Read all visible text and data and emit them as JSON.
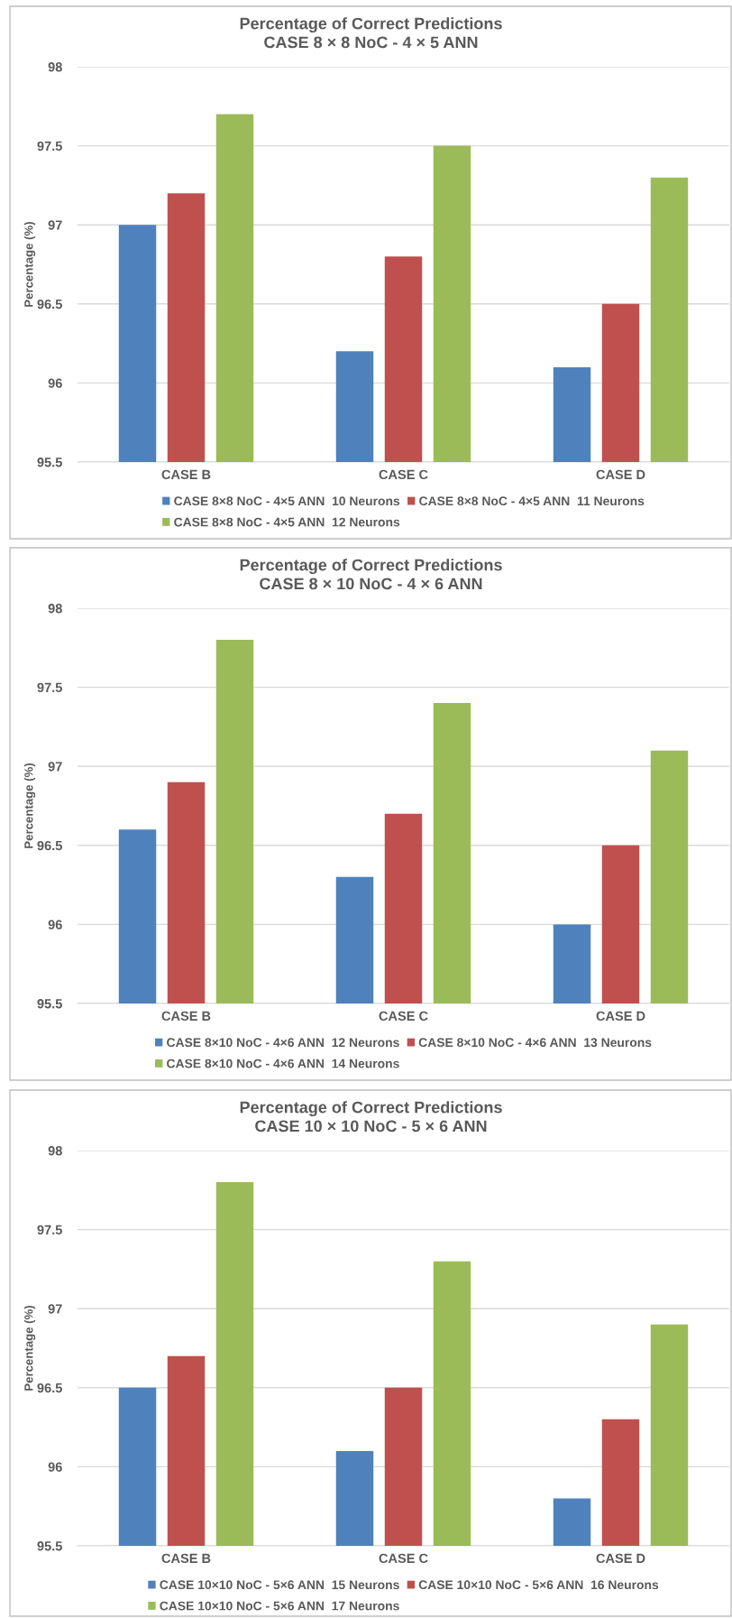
{
  "chart_data": [
    {
      "type": "bar",
      "title": "Percentage of Correct Predictions\nCASE 8 × 8 NoC - 4 × 5 ANN",
      "ylabel": "Percentage (%)",
      "categories": [
        "CASE B",
        "CASE C",
        "CASE D"
      ],
      "series": [
        {
          "name": "CASE 8×8 NoC - 4×5 ANN  10 Neurons",
          "color": "#4f81bd",
          "values": [
            97.0,
            96.2,
            96.1
          ]
        },
        {
          "name": "CASE 8×8 NoC - 4×5 ANN  11 Neurons",
          "color": "#c0504d",
          "values": [
            97.2,
            96.8,
            96.5
          ]
        },
        {
          "name": "CASE 8×8 NoC - 4×5 ANN  12 Neurons",
          "color": "#9bbb59",
          "values": [
            97.7,
            97.5,
            97.3
          ]
        }
      ],
      "ylim": [
        95.5,
        98
      ],
      "yticks": [
        95.5,
        96,
        96.5,
        97,
        97.5,
        98
      ],
      "grid": "y",
      "legend": "bottom"
    },
    {
      "type": "bar",
      "title": "Percentage of Correct Predictions\nCASE 8 × 10 NoC - 4 × 6 ANN",
      "ylabel": "Percentage (%)",
      "categories": [
        "CASE B",
        "CASE C",
        "CASE D"
      ],
      "series": [
        {
          "name": "CASE 8×10 NoC - 4×6 ANN  12 Neurons",
          "color": "#4f81bd",
          "values": [
            96.6,
            96.3,
            96.0
          ]
        },
        {
          "name": "CASE 8×10 NoC - 4×6 ANN  13 Neurons",
          "color": "#c0504d",
          "values": [
            96.9,
            96.7,
            96.5
          ]
        },
        {
          "name": "CASE 8×10 NoC - 4×6 ANN  14 Neurons",
          "color": "#9bbb59",
          "values": [
            97.8,
            97.4,
            97.1
          ]
        }
      ],
      "ylim": [
        95.5,
        98
      ],
      "yticks": [
        95.5,
        96,
        96.5,
        97,
        97.5,
        98
      ],
      "grid": "y",
      "legend": "bottom"
    },
    {
      "type": "bar",
      "title": "Percentage of Correct Predictions\nCASE 10 × 10 NoC - 5 × 6 ANN",
      "ylabel": "Percentage (%)",
      "categories": [
        "CASE B",
        "CASE C",
        "CASE D"
      ],
      "series": [
        {
          "name": "CASE 10×10 NoC - 5×6 ANN  15 Neurons",
          "color": "#4f81bd",
          "values": [
            96.5,
            96.1,
            95.8
          ]
        },
        {
          "name": "CASE 10×10 NoC - 5×6 ANN  16 Neurons",
          "color": "#c0504d",
          "values": [
            96.7,
            96.5,
            96.3
          ]
        },
        {
          "name": "CASE 10×10 NoC - 5×6 ANN  17 Neurons",
          "color": "#9bbb59",
          "values": [
            97.8,
            97.3,
            96.9
          ]
        }
      ],
      "ylim": [
        95.5,
        98
      ],
      "yticks": [
        95.5,
        96,
        96.5,
        97,
        97.5,
        98
      ],
      "grid": "y",
      "legend": "bottom"
    }
  ]
}
